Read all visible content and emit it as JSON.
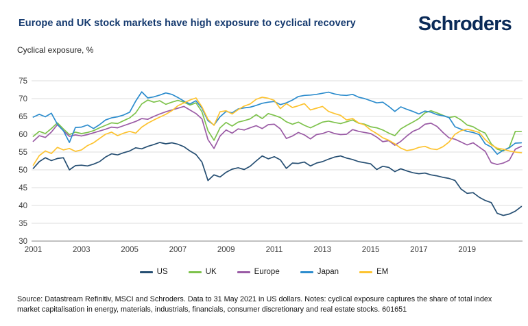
{
  "header": {
    "title": "Europe and UK stock markets have high exposure to cyclical recovery",
    "brand": "Schroders"
  },
  "chart": {
    "axis_title": "Cyclical exposure, %"
  },
  "chart_data": {
    "type": "line",
    "title": "Europe and UK stock markets have high exposure to cyclical recovery",
    "ylabel": "Cyclical exposure, %",
    "xlabel": "",
    "grid": true,
    "legend_position": "bottom",
    "ylim": [
      30,
      75
    ],
    "y_ticks": [
      30,
      35,
      40,
      45,
      50,
      55,
      60,
      65,
      70,
      75
    ],
    "x_ticks": [
      2001,
      2003,
      2005,
      2007,
      2009,
      2011,
      2013,
      2015,
      2017,
      2019
    ],
    "x_start": 2001.0,
    "x_step_years": 0.25,
    "x_end": 2021.25,
    "colors": {
      "grid": "#dcdcdc",
      "axis": "#9c9c9c",
      "tick_text": "#3d3d3d"
    },
    "series": [
      {
        "name": "US",
        "color": "#254e72",
        "values": [
          50.4,
          52.3,
          53.4,
          52.6,
          53.2,
          53.4,
          50.0,
          51.2,
          51.3,
          51.1,
          51.6,
          52.3,
          53.6,
          54.5,
          54.2,
          54.8,
          55.3,
          56.2,
          55.9,
          56.6,
          57.1,
          57.7,
          57.3,
          57.6,
          57.2,
          56.5,
          55.3,
          54.3,
          52.2,
          47.0,
          48.6,
          48.0,
          49.3,
          50.2,
          50.6,
          50.1,
          51.0,
          52.5,
          53.9,
          53.1,
          53.7,
          52.8,
          50.4,
          51.9,
          51.8,
          52.2,
          51.1,
          51.9,
          52.3,
          53.0,
          53.6,
          53.9,
          53.3,
          52.9,
          52.3,
          52.0,
          51.7,
          50.1,
          51.0,
          50.7,
          49.5,
          50.3,
          49.7,
          49.2,
          48.9,
          49.1,
          48.6,
          48.3,
          47.9,
          47.6,
          47.0,
          44.6,
          43.4,
          43.6,
          42.3,
          41.4,
          40.8,
          37.8,
          37.2,
          37.6,
          38.4,
          39.7
        ]
      },
      {
        "name": "UK",
        "color": "#7dc24b",
        "values": [
          59.4,
          60.8,
          60.2,
          61.6,
          63.2,
          61.5,
          59.9,
          60.6,
          60.2,
          60.5,
          61.0,
          61.8,
          62.5,
          63.2,
          63.0,
          63.8,
          64.6,
          66.0,
          68.5,
          69.6,
          69.0,
          69.4,
          68.4,
          69.0,
          69.5,
          69.0,
          68.2,
          68.8,
          66.3,
          61.0,
          58.3,
          61.8,
          63.3,
          62.3,
          63.4,
          63.8,
          64.3,
          65.5,
          64.4,
          65.8,
          65.3,
          64.7,
          63.5,
          62.8,
          63.4,
          62.5,
          61.8,
          62.6,
          63.4,
          63.7,
          63.3,
          63.0,
          63.5,
          64.0,
          63.1,
          62.8,
          62.1,
          61.8,
          61.2,
          60.3,
          59.6,
          61.5,
          62.5,
          63.4,
          64.4,
          66.0,
          66.6,
          66.0,
          65.3,
          64.7,
          65.0,
          64.0,
          62.6,
          62.1,
          61.1,
          60.3,
          57.3,
          55.8,
          55.3,
          56.3,
          60.8,
          60.8
        ]
      },
      {
        "name": "Europe",
        "color": "#9a5ba5",
        "values": [
          58.0,
          59.6,
          59.1,
          60.6,
          62.7,
          61.0,
          59.4,
          59.8,
          59.5,
          59.9,
          60.4,
          60.9,
          61.4,
          62.0,
          61.8,
          62.4,
          63.0,
          63.6,
          64.4,
          64.2,
          65.0,
          65.7,
          66.3,
          66.8,
          67.3,
          67.8,
          66.8,
          65.8,
          64.3,
          58.5,
          56.0,
          59.5,
          61.2,
          60.3,
          61.5,
          61.2,
          61.8,
          62.4,
          61.6,
          62.7,
          62.8,
          61.5,
          58.8,
          59.5,
          60.5,
          59.8,
          58.7,
          59.9,
          60.2,
          60.8,
          60.2,
          59.9,
          60.0,
          61.3,
          60.8,
          60.5,
          60.2,
          59.2,
          57.9,
          58.2,
          56.9,
          58.0,
          59.5,
          60.8,
          61.5,
          62.8,
          63.1,
          62.2,
          60.5,
          59.0,
          58.6,
          57.8,
          57.0,
          57.6,
          56.4,
          55.2,
          52.0,
          51.5,
          51.9,
          52.7,
          55.8,
          56.6
        ]
      },
      {
        "name": "Japan",
        "color": "#2c8ccd",
        "values": [
          64.8,
          65.6,
          64.9,
          65.9,
          62.8,
          61.0,
          57.7,
          61.9,
          62.0,
          62.6,
          61.6,
          62.7,
          64.0,
          64.6,
          64.9,
          65.4,
          66.2,
          69.3,
          71.9,
          70.2,
          70.5,
          71.0,
          71.6,
          71.2,
          70.3,
          69.3,
          68.5,
          69.4,
          67.3,
          63.8,
          62.6,
          64.9,
          66.4,
          66.0,
          67.1,
          67.4,
          67.6,
          68.1,
          68.7,
          69.0,
          69.2,
          68.3,
          68.8,
          69.6,
          70.6,
          70.9,
          71.0,
          71.2,
          71.5,
          71.8,
          71.3,
          71.0,
          70.9,
          71.2,
          70.4,
          70.0,
          69.4,
          68.8,
          69.0,
          67.8,
          66.4,
          67.7,
          67.0,
          66.4,
          65.7,
          66.5,
          66.2,
          65.5,
          65.2,
          64.7,
          62.1,
          61.4,
          60.8,
          60.5,
          59.9,
          57.3,
          56.4,
          54.4,
          55.5,
          56.2,
          57.5,
          57.6
        ]
      },
      {
        "name": "EM",
        "color": "#fdc330",
        "values": [
          51.3,
          54.0,
          55.3,
          54.6,
          56.3,
          55.6,
          56.0,
          55.2,
          55.6,
          56.8,
          57.6,
          58.8,
          60.0,
          60.6,
          59.6,
          60.3,
          60.8,
          60.3,
          62.0,
          63.1,
          64.0,
          64.8,
          65.6,
          66.6,
          68.0,
          68.8,
          69.6,
          70.2,
          67.7,
          64.2,
          62.5,
          66.3,
          66.6,
          65.7,
          66.9,
          67.9,
          68.5,
          69.8,
          70.4,
          70.1,
          69.5,
          67.2,
          68.6,
          67.5,
          68.0,
          68.6,
          66.8,
          67.3,
          67.8,
          66.4,
          65.8,
          65.3,
          64.0,
          64.4,
          63.2,
          62.6,
          61.2,
          60.2,
          59.0,
          58.3,
          57.3,
          56.1,
          55.4,
          55.7,
          56.3,
          56.6,
          55.9,
          55.7,
          56.5,
          57.8,
          60.0,
          61.0,
          61.4,
          61.0,
          60.5,
          58.5,
          57.0,
          56.1,
          55.8,
          55.3,
          55.0,
          54.8
        ]
      }
    ]
  },
  "footer": {
    "text": "Source: Datastream Refinitiv, MSCI and Schroders. Data to 31 May 2021 in US dollars. Notes: cyclical exposure captures the share of total index market capitalisation in energy, materials, industrials, financials, consumer discretionary and real estate stocks. 601651"
  }
}
